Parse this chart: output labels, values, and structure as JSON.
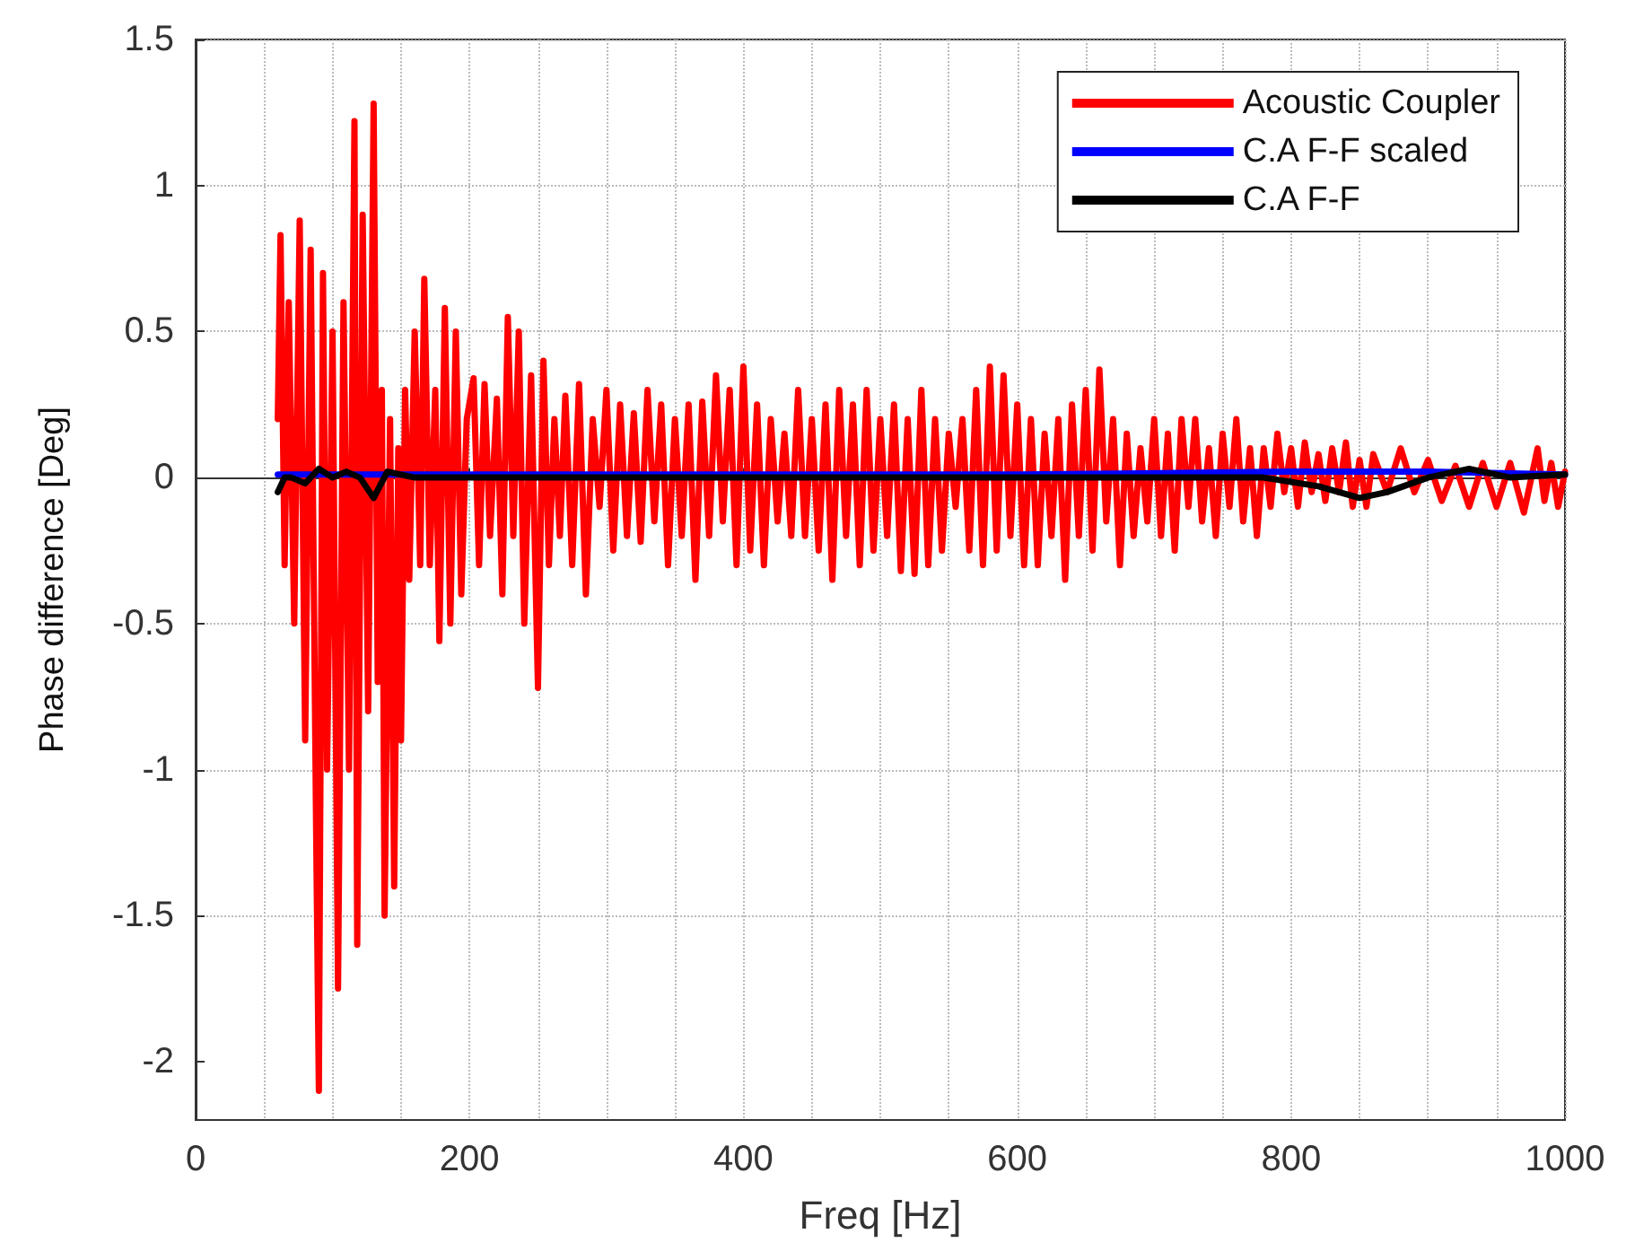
{
  "chart_data": {
    "type": "line",
    "xlabel": "Freq [Hz]",
    "ylabel": "Phase difference [Deg]",
    "xlim": [
      0,
      1000
    ],
    "xticks": [
      0,
      200,
      400,
      600,
      800,
      1000
    ],
    "ylim": [
      -2.2,
      1.5
    ],
    "yticks": [
      -2,
      -1.5,
      -1,
      -0.5,
      0,
      0.5,
      1,
      1.5
    ],
    "grid": true,
    "legend": "top right",
    "marker": "none",
    "line_style": "solid",
    "series": [
      {
        "name": "Acoustic Coupler",
        "color": "#ff0000",
        "x": [
          60,
          62,
          65,
          68,
          72,
          76,
          80,
          84,
          88,
          90,
          93,
          96,
          100,
          104,
          108,
          112,
          116,
          118,
          122,
          126,
          130,
          133,
          136,
          138,
          142,
          145,
          148,
          150,
          153,
          156,
          160,
          164,
          167,
          171,
          175,
          178,
          182,
          186,
          190,
          194,
          198,
          203,
          207,
          211,
          215,
          220,
          224,
          228,
          232,
          236,
          240,
          245,
          250,
          254,
          258,
          262,
          266,
          270,
          275,
          280,
          285,
          290,
          295,
          300,
          305,
          310,
          315,
          320,
          325,
          330,
          335,
          340,
          345,
          350,
          355,
          360,
          365,
          370,
          375,
          380,
          385,
          390,
          395,
          400,
          405,
          410,
          415,
          420,
          425,
          430,
          435,
          440,
          445,
          450,
          455,
          460,
          465,
          470,
          475,
          480,
          485,
          490,
          495,
          500,
          505,
          510,
          515,
          520,
          525,
          530,
          535,
          540,
          545,
          550,
          555,
          560,
          565,
          570,
          575,
          580,
          585,
          590,
          595,
          600,
          605,
          610,
          615,
          620,
          625,
          630,
          635,
          640,
          645,
          650,
          655,
          660,
          665,
          670,
          675,
          680,
          685,
          690,
          695,
          700,
          705,
          710,
          715,
          720,
          725,
          730,
          735,
          740,
          745,
          750,
          755,
          760,
          765,
          770,
          775,
          780,
          785,
          790,
          795,
          800,
          805,
          810,
          815,
          820,
          825,
          830,
          835,
          840,
          845,
          850,
          855,
          860,
          870,
          880,
          890,
          900,
          910,
          920,
          930,
          940,
          950,
          960,
          970,
          980,
          985,
          990,
          995,
          1000
        ],
        "values": [
          0.2,
          0.83,
          -0.3,
          0.6,
          -0.5,
          0.88,
          -0.9,
          0.78,
          -1.2,
          -2.1,
          0.7,
          -1.0,
          0.5,
          -1.75,
          0.6,
          -1.0,
          1.22,
          -1.6,
          0.9,
          -0.8,
          1.28,
          -0.7,
          0.3,
          -1.5,
          0.2,
          -1.4,
          0.1,
          -0.9,
          0.3,
          -0.35,
          0.5,
          -0.3,
          0.68,
          -0.3,
          0.3,
          -0.56,
          0.58,
          -0.5,
          0.5,
          -0.4,
          0.2,
          0.34,
          -0.3,
          0.32,
          -0.2,
          0.27,
          -0.4,
          0.55,
          -0.2,
          0.5,
          -0.5,
          0.35,
          -0.72,
          0.4,
          -0.3,
          0.2,
          -0.2,
          0.28,
          -0.3,
          0.32,
          -0.4,
          0.2,
          -0.1,
          0.3,
          -0.25,
          0.25,
          -0.2,
          0.22,
          -0.22,
          0.3,
          -0.15,
          0.25,
          -0.3,
          0.2,
          -0.2,
          0.25,
          -0.35,
          0.26,
          -0.2,
          0.35,
          -0.15,
          0.3,
          -0.3,
          0.38,
          -0.25,
          0.25,
          -0.3,
          0.2,
          -0.15,
          0.15,
          -0.2,
          0.3,
          -0.2,
          0.2,
          -0.25,
          0.25,
          -0.35,
          0.3,
          -0.2,
          0.25,
          -0.3,
          0.3,
          -0.25,
          0.2,
          -0.2,
          0.25,
          -0.32,
          0.2,
          -0.33,
          0.3,
          -0.3,
          0.2,
          -0.25,
          0.15,
          -0.1,
          0.2,
          -0.25,
          0.3,
          -0.3,
          0.38,
          -0.25,
          0.35,
          -0.2,
          0.25,
          -0.3,
          0.2,
          -0.3,
          0.15,
          -0.2,
          0.2,
          -0.35,
          0.25,
          -0.2,
          0.3,
          -0.25,
          0.37,
          -0.15,
          0.2,
          -0.3,
          0.15,
          -0.2,
          0.1,
          -0.15,
          0.2,
          -0.2,
          0.15,
          -0.25,
          0.2,
          -0.1,
          0.2,
          -0.15,
          0.1,
          -0.2,
          0.15,
          -0.1,
          0.2,
          -0.15,
          0.1,
          -0.2,
          0.1,
          -0.1,
          0.15,
          -0.05,
          0.1,
          -0.1,
          0.12,
          -0.05,
          0.08,
          -0.08,
          0.1,
          -0.05,
          0.12,
          -0.1,
          0.06,
          -0.1,
          0.08,
          -0.05,
          0.1,
          -0.05,
          0.06,
          -0.08,
          0.04,
          -0.1,
          0.05,
          -0.1,
          0.05,
          -0.12,
          0.1,
          -0.08,
          0.05,
          -0.1,
          0.02
        ]
      },
      {
        "name": "C.A F-F scaled",
        "color": "#0000ff",
        "x": [
          60,
          200,
          400,
          600,
          800,
          850,
          900,
          1000
        ],
        "values": [
          0.01,
          0.01,
          0.01,
          0.01,
          0.02,
          0.02,
          0.02,
          0.01
        ]
      },
      {
        "name": "C.A F-F",
        "color": "#000000",
        "x": [
          60,
          65,
          70,
          80,
          90,
          100,
          110,
          120,
          130,
          140,
          160,
          200,
          400,
          600,
          780,
          820,
          850,
          870,
          900,
          930,
          960,
          1000
        ],
        "values": [
          -0.05,
          0.0,
          0.0,
          -0.02,
          0.03,
          0.0,
          0.02,
          0.0,
          -0.07,
          0.02,
          0.0,
          0.0,
          0.0,
          0.0,
          0.0,
          -0.03,
          -0.07,
          -0.05,
          0.0,
          0.03,
          0.0,
          0.01
        ]
      }
    ]
  }
}
